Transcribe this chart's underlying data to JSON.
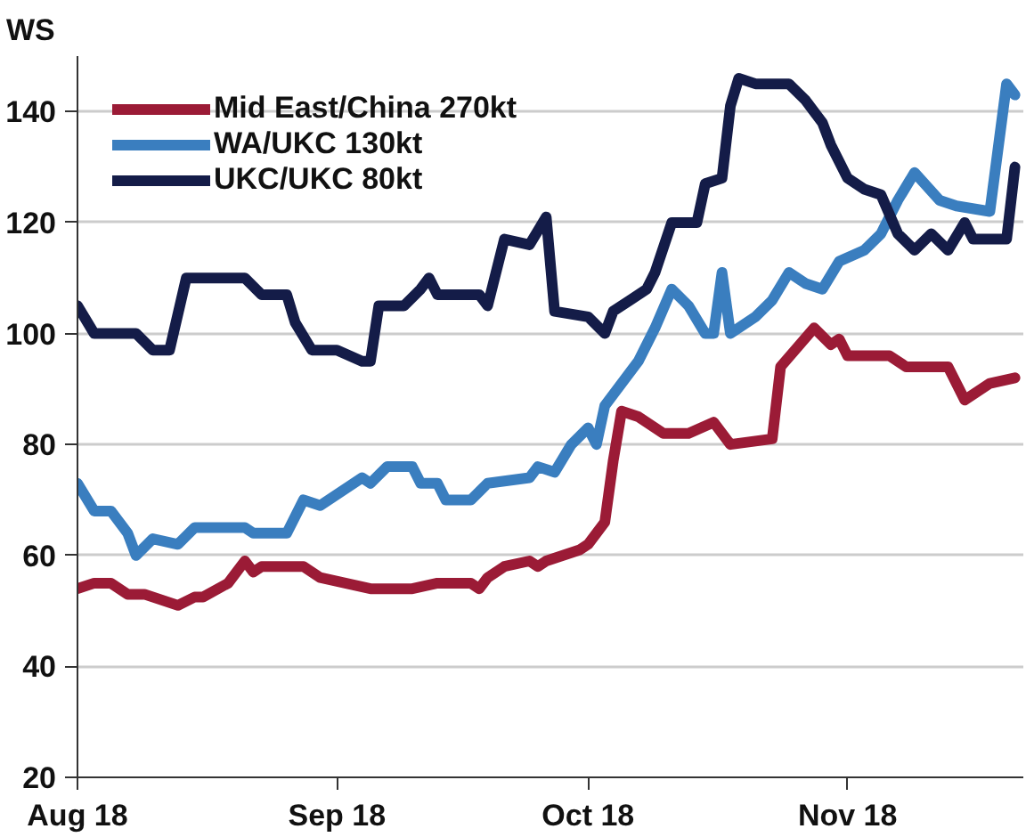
{
  "chart_data": {
    "type": "line",
    "ylabel": "WS",
    "xlim": [
      "2018-08-01",
      "2018-11-22"
    ],
    "xticks": [
      {
        "value": "2018-08-01",
        "label": "Aug 18"
      },
      {
        "value": "2018-09-01",
        "label": "Sep 18"
      },
      {
        "value": "2018-10-01",
        "label": "Oct 18"
      },
      {
        "value": "2018-11-01",
        "label": "Nov 18"
      }
    ],
    "ylim": [
      20,
      150
    ],
    "yticks": [
      20,
      40,
      60,
      80,
      100,
      120,
      140
    ],
    "grid": "y",
    "legend": "top left",
    "marker": "none",
    "line_style": "solid",
    "series": [
      {
        "name": "Mid East/China 270kt",
        "color": "#9b1b36",
        "x": [
          "2018-08-01",
          "2018-08-03",
          "2018-08-05",
          "2018-08-07",
          "2018-08-09",
          "2018-08-13",
          "2018-08-15",
          "2018-08-16",
          "2018-08-19",
          "2018-08-21",
          "2018-08-22",
          "2018-08-23",
          "2018-08-26",
          "2018-08-28",
          "2018-08-30",
          "2018-09-05",
          "2018-09-07",
          "2018-09-10",
          "2018-09-13",
          "2018-09-17",
          "2018-09-18",
          "2018-09-19",
          "2018-09-21",
          "2018-09-24",
          "2018-09-25",
          "2018-09-26",
          "2018-09-30",
          "2018-10-01",
          "2018-10-03",
          "2018-10-04",
          "2018-10-05",
          "2018-10-07",
          "2018-10-10",
          "2018-10-13",
          "2018-10-16",
          "2018-10-18",
          "2018-10-23",
          "2018-10-24",
          "2018-10-28",
          "2018-10-30",
          "2018-10-31",
          "2018-11-01",
          "2018-11-06",
          "2018-11-08",
          "2018-11-13",
          "2018-11-15",
          "2018-11-18",
          "2018-11-21"
        ],
        "values": [
          54,
          55,
          55,
          53,
          53,
          51,
          52.5,
          52.5,
          55,
          59,
          57,
          58,
          58,
          58,
          56,
          54,
          54,
          54,
          55,
          55,
          54,
          56,
          58,
          59,
          58,
          59,
          61,
          62,
          66,
          77,
          86,
          85,
          82,
          82,
          84,
          80,
          81,
          94,
          101,
          98,
          99,
          96,
          96,
          94,
          94,
          88,
          91,
          92
        ]
      },
      {
        "name": "WA/UKC 130kt",
        "color": "#3a7ebf",
        "x": [
          "2018-08-01",
          "2018-08-03",
          "2018-08-05",
          "2018-08-07",
          "2018-08-08",
          "2018-08-10",
          "2018-08-13",
          "2018-08-15",
          "2018-08-21",
          "2018-08-22",
          "2018-08-26",
          "2018-08-28",
          "2018-08-30",
          "2018-09-03",
          "2018-09-04",
          "2018-09-05",
          "2018-09-07",
          "2018-09-10",
          "2018-09-11",
          "2018-09-13",
          "2018-09-14",
          "2018-09-17",
          "2018-09-19",
          "2018-09-24",
          "2018-09-25",
          "2018-09-27",
          "2018-09-29",
          "2018-10-01",
          "2018-10-02",
          "2018-10-03",
          "2018-10-06",
          "2018-10-07",
          "2018-10-09",
          "2018-10-11",
          "2018-10-13",
          "2018-10-15",
          "2018-10-16",
          "2018-10-17",
          "2018-10-18",
          "2018-10-21",
          "2018-10-23",
          "2018-10-25",
          "2018-10-27",
          "2018-10-29",
          "2018-10-31",
          "2018-11-03",
          "2018-11-05",
          "2018-11-07",
          "2018-11-09",
          "2018-11-12",
          "2018-11-14",
          "2018-11-18",
          "2018-11-20",
          "2018-11-21"
        ],
        "values": [
          73,
          68,
          68,
          64,
          60,
          63,
          62,
          65,
          65,
          64,
          64,
          70,
          69,
          73,
          74,
          73,
          76,
          76,
          73,
          73,
          70,
          70,
          73,
          74,
          76,
          75,
          80,
          83,
          80,
          87,
          93,
          95,
          101,
          108,
          105,
          100,
          100,
          111,
          100,
          103,
          106,
          111,
          109,
          108,
          113,
          115,
          118,
          124,
          129,
          124,
          123,
          122,
          145,
          143
        ]
      },
      {
        "name": "UKC/UKC 80kt",
        "color": "#141c48",
        "x": [
          "2018-08-01",
          "2018-08-03",
          "2018-08-08",
          "2018-08-10",
          "2018-08-12",
          "2018-08-14",
          "2018-08-21",
          "2018-08-23",
          "2018-08-26",
          "2018-08-27",
          "2018-08-29",
          "2018-09-01",
          "2018-09-04",
          "2018-09-05",
          "2018-09-06",
          "2018-09-09",
          "2018-09-11",
          "2018-09-12",
          "2018-09-13",
          "2018-09-18",
          "2018-09-19",
          "2018-09-21",
          "2018-09-24",
          "2018-09-26",
          "2018-09-27",
          "2018-10-01",
          "2018-10-03",
          "2018-10-04",
          "2018-10-06",
          "2018-10-08",
          "2018-10-09",
          "2018-10-11",
          "2018-10-14",
          "2018-10-15",
          "2018-10-17",
          "2018-10-18",
          "2018-10-19",
          "2018-10-21",
          "2018-10-25",
          "2018-10-27",
          "2018-10-29",
          "2018-10-30",
          "2018-11-01",
          "2018-11-03",
          "2018-11-05",
          "2018-11-07",
          "2018-11-09",
          "2018-11-11",
          "2018-11-13",
          "2018-11-15",
          "2018-11-16",
          "2018-11-20",
          "2018-11-21"
        ],
        "values": [
          105,
          100,
          100,
          97,
          97,
          110,
          110,
          107,
          107,
          102,
          97,
          97,
          95,
          95,
          105,
          105,
          108,
          110,
          107,
          107,
          105,
          117,
          116,
          121,
          104,
          103,
          100,
          104,
          106,
          108,
          111,
          120,
          120,
          127,
          128,
          141,
          146,
          145,
          145,
          142,
          138,
          134,
          128,
          126,
          125,
          118,
          115,
          118,
          115,
          120,
          117,
          117,
          130
        ]
      }
    ]
  }
}
